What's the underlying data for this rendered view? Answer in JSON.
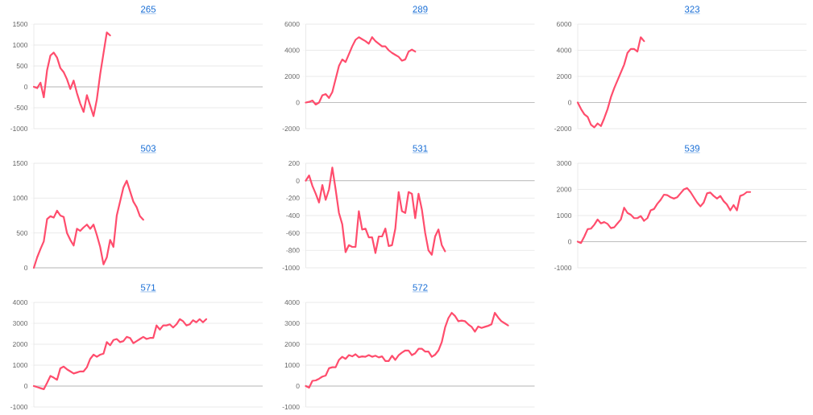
{
  "chart_data": [
    {
      "type": "line",
      "title": "265",
      "color": "#ff4d6d",
      "grid": "y",
      "tick_labels": "y",
      "ylim": [
        -1000,
        1500
      ],
      "yticks": [
        -1000,
        -500,
        0,
        500,
        1000,
        1500
      ],
      "categories": [
        null,
        null,
        null,
        null,
        null,
        null,
        null,
        null,
        null,
        null,
        null,
        null,
        null,
        null,
        null,
        null,
        null,
        null,
        null,
        null,
        null,
        null,
        null,
        null,
        null,
        null,
        null,
        null,
        null,
        null,
        null,
        null,
        null,
        null,
        null,
        null,
        null,
        null,
        null,
        null,
        null,
        null,
        null,
        null,
        null,
        null,
        null,
        null,
        null,
        null,
        null,
        null,
        null,
        null,
        null,
        null,
        null,
        null,
        null,
        null,
        null,
        null,
        null,
        null,
        null,
        null,
        null,
        null,
        null,
        null
      ],
      "values": [
        0,
        -30,
        100,
        -250,
        400,
        750,
        820,
        700,
        450,
        350,
        180,
        -50,
        150,
        -150,
        -400,
        -600,
        -200,
        -450,
        -700,
        -300,
        300,
        800,
        1300,
        1230,
        null,
        null,
        null,
        null,
        null,
        null,
        null,
        null,
        null,
        null,
        null,
        null,
        null,
        null,
        null,
        null,
        null,
        null,
        null,
        null,
        null,
        null,
        null,
        null,
        null,
        null,
        null,
        null,
        null,
        null,
        null,
        null,
        null,
        null,
        null,
        null,
        null,
        null,
        null,
        null,
        null,
        null,
        null,
        null,
        null,
        null
      ]
    },
    {
      "type": "line",
      "title": "289",
      "color": "#ff4d6d",
      "grid": "y",
      "tick_labels": "y",
      "ylim": [
        -2000,
        6000
      ],
      "yticks": [
        -2000,
        0,
        2000,
        4000,
        6000
      ],
      "categories": [
        null,
        null,
        null,
        null,
        null,
        null,
        null,
        null,
        null,
        null,
        null,
        null,
        null,
        null,
        null,
        null,
        null,
        null,
        null,
        null,
        null,
        null,
        null,
        null,
        null,
        null,
        null,
        null,
        null,
        null,
        null,
        null,
        null,
        null,
        null,
        null,
        null,
        null,
        null,
        null,
        null,
        null,
        null,
        null,
        null,
        null,
        null,
        null,
        null,
        null,
        null,
        null,
        null,
        null,
        null,
        null,
        null,
        null,
        null,
        null,
        null,
        null,
        null,
        null,
        null,
        null,
        null,
        null,
        null,
        null
      ],
      "values": [
        0,
        50,
        150,
        -150,
        0,
        550,
        650,
        350,
        800,
        1800,
        2800,
        3300,
        3100,
        3700,
        4300,
        4800,
        5000,
        4850,
        4700,
        4500,
        5000,
        4700,
        4500,
        4300,
        4300,
        4000,
        3800,
        3650,
        3500,
        3200,
        3300,
        3900,
        4050,
        3900,
        null,
        null,
        null,
        null,
        null,
        null,
        null,
        null,
        null,
        null,
        null,
        null,
        null,
        null,
        null,
        null,
        null,
        null,
        null,
        null,
        null,
        null,
        null,
        null,
        null,
        null,
        null,
        null,
        null,
        null,
        null,
        null,
        null,
        null,
        null,
        null
      ]
    },
    {
      "type": "line",
      "title": "323",
      "color": "#ff4d6d",
      "grid": "y",
      "tick_labels": "y",
      "ylim": [
        -2000,
        6000
      ],
      "yticks": [
        -2000,
        0,
        2000,
        4000,
        6000
      ],
      "categories": [
        null,
        null,
        null,
        null,
        null,
        null,
        null,
        null,
        null,
        null,
        null,
        null,
        null,
        null,
        null,
        null,
        null,
        null,
        null,
        null,
        null,
        null,
        null,
        null,
        null,
        null,
        null,
        null,
        null,
        null,
        null,
        null,
        null,
        null,
        null,
        null,
        null,
        null,
        null,
        null,
        null,
        null,
        null,
        null,
        null,
        null,
        null,
        null,
        null,
        null,
        null,
        null,
        null,
        null,
        null,
        null,
        null,
        null,
        null,
        null,
        null,
        null,
        null,
        null,
        null,
        null,
        null,
        null,
        null,
        null
      ],
      "values": [
        0,
        -500,
        -900,
        -1100,
        -1700,
        -1900,
        -1600,
        -1800,
        -1200,
        -500,
        400,
        1100,
        1700,
        2300,
        2900,
        3800,
        4100,
        4100,
        3900,
        5000,
        4700,
        null,
        null,
        null,
        null,
        null,
        null,
        null,
        null,
        null,
        null,
        null,
        null,
        null,
        null,
        null,
        null,
        null,
        null,
        null,
        null,
        null,
        null,
        null,
        null,
        null,
        null,
        null,
        null,
        null,
        null,
        null,
        null,
        null,
        null,
        null,
        null,
        null,
        null,
        null,
        null,
        null,
        null,
        null,
        null,
        null,
        null,
        null,
        null,
        null
      ]
    },
    {
      "type": "line",
      "title": "503",
      "color": "#ff4d6d",
      "grid": "y",
      "tick_labels": "y",
      "ylim": [
        0,
        1500
      ],
      "yticks": [
        0,
        500,
        1000,
        1500
      ],
      "categories": [
        null,
        null,
        null,
        null,
        null,
        null,
        null,
        null,
        null,
        null,
        null,
        null,
        null,
        null,
        null,
        null,
        null,
        null,
        null,
        null,
        null,
        null,
        null,
        null,
        null,
        null,
        null,
        null,
        null,
        null,
        null,
        null,
        null,
        null,
        null,
        null,
        null,
        null,
        null,
        null,
        null,
        null,
        null,
        null,
        null,
        null,
        null,
        null,
        null,
        null,
        null,
        null,
        null,
        null,
        null,
        null,
        null,
        null,
        null,
        null,
        null,
        null,
        null,
        null,
        null,
        null,
        null,
        null,
        null,
        null
      ],
      "values": [
        0,
        150,
        270,
        380,
        700,
        740,
        720,
        820,
        750,
        730,
        500,
        400,
        320,
        560,
        530,
        580,
        620,
        560,
        620,
        470,
        300,
        50,
        150,
        400,
        300,
        750,
        950,
        1150,
        1250,
        1100,
        950,
        870,
        740,
        690,
        null,
        null,
        null,
        null,
        null,
        null,
        null,
        null,
        null,
        null,
        null,
        null,
        null,
        null,
        null,
        null,
        null,
        null,
        null,
        null,
        null,
        null,
        null,
        null,
        null,
        null,
        null,
        null,
        null,
        null,
        null,
        null,
        null,
        null,
        null,
        null
      ]
    },
    {
      "type": "line",
      "title": "531",
      "color": "#ff4d6d",
      "grid": "y",
      "tick_labels": "y",
      "ylim": [
        -1000,
        200
      ],
      "yticks": [
        -1000,
        -800,
        -600,
        -400,
        -200,
        0,
        200
      ],
      "categories": [
        null,
        null,
        null,
        null,
        null,
        null,
        null,
        null,
        null,
        null,
        null,
        null,
        null,
        null,
        null,
        null,
        null,
        null,
        null,
        null,
        null,
        null,
        null,
        null,
        null,
        null,
        null,
        null,
        null,
        null,
        null,
        null,
        null,
        null,
        null,
        null,
        null,
        null,
        null,
        null,
        null,
        null,
        null,
        null,
        null,
        null,
        null,
        null,
        null,
        null,
        null,
        null,
        null,
        null,
        null,
        null,
        null,
        null,
        null,
        null,
        null,
        null,
        null,
        null,
        null,
        null,
        null,
        null,
        null,
        null
      ],
      "values": [
        0,
        60,
        -60,
        -150,
        -250,
        -50,
        -220,
        -100,
        150,
        -100,
        -370,
        -500,
        -820,
        -740,
        -760,
        -760,
        -350,
        -560,
        -550,
        -650,
        -650,
        -830,
        -640,
        -640,
        -550,
        -750,
        -740,
        -550,
        -130,
        -350,
        -370,
        -130,
        -150,
        -430,
        -150,
        -330,
        -600,
        -800,
        -850,
        -640,
        -560,
        -740,
        -810,
        null,
        null,
        null,
        null,
        null,
        null,
        null,
        null,
        null,
        null,
        null,
        null,
        null,
        null,
        null,
        null,
        null,
        null,
        null,
        null,
        null,
        null,
        null,
        null,
        null,
        null,
        null
      ]
    },
    {
      "type": "line",
      "title": "539",
      "color": "#ff4d6d",
      "grid": "y",
      "tick_labels": "y",
      "ylim": [
        -1000,
        3000
      ],
      "yticks": [
        -1000,
        0,
        1000,
        2000,
        3000
      ],
      "categories": [
        null,
        null,
        null,
        null,
        null,
        null,
        null,
        null,
        null,
        null,
        null,
        null,
        null,
        null,
        null,
        null,
        null,
        null,
        null,
        null,
        null,
        null,
        null,
        null,
        null,
        null,
        null,
        null,
        null,
        null,
        null,
        null,
        null,
        null,
        null,
        null,
        null,
        null,
        null,
        null,
        null,
        null,
        null,
        null,
        null,
        null,
        null,
        null,
        null,
        null,
        null,
        null,
        null,
        null,
        null,
        null,
        null,
        null,
        null,
        null,
        null,
        null,
        null,
        null,
        null,
        null,
        null,
        null,
        null,
        null
      ],
      "values": [
        0,
        -50,
        200,
        480,
        500,
        650,
        850,
        700,
        750,
        680,
        520,
        550,
        700,
        850,
        1300,
        1100,
        1030,
        900,
        900,
        980,
        800,
        900,
        1200,
        1250,
        1450,
        1600,
        1800,
        1780,
        1700,
        1650,
        1700,
        1850,
        2000,
        2050,
        1900,
        1700,
        1500,
        1350,
        1500,
        1850,
        1880,
        1750,
        1650,
        1750,
        1550,
        1420,
        1200,
        1400,
        1200,
        1750,
        1800,
        1900,
        1900,
        null,
        null,
        null,
        null,
        null,
        null,
        null,
        null,
        null,
        null,
        null,
        null,
        null,
        null,
        null,
        null,
        null
      ]
    },
    {
      "type": "line",
      "title": "571",
      "color": "#ff4d6d",
      "grid": "y",
      "tick_labels": "y",
      "ylim": [
        -1000,
        4000
      ],
      "yticks": [
        -1000,
        0,
        1000,
        2000,
        3000,
        4000
      ],
      "categories": [
        null,
        null,
        null,
        null,
        null,
        null,
        null,
        null,
        null,
        null,
        null,
        null,
        null,
        null,
        null,
        null,
        null,
        null,
        null,
        null,
        null,
        null,
        null,
        null,
        null,
        null,
        null,
        null,
        null,
        null,
        null,
        null,
        null,
        null,
        null,
        null,
        null,
        null,
        null,
        null,
        null,
        null,
        null,
        null,
        null,
        null,
        null,
        null,
        null,
        null,
        null,
        null,
        null,
        null,
        null,
        null,
        null,
        null,
        null,
        null,
        null,
        null,
        null,
        null,
        null,
        null,
        null,
        null,
        null,
        null
      ],
      "values": [
        0,
        -50,
        -100,
        -150,
        150,
        480,
        400,
        300,
        850,
        930,
        800,
        700,
        600,
        650,
        700,
        700,
        900,
        1300,
        1500,
        1400,
        1500,
        1550,
        2100,
        1950,
        2200,
        2250,
        2100,
        2150,
        2350,
        2300,
        2050,
        2150,
        2250,
        2350,
        2250,
        2300,
        2300,
        2900,
        2700,
        2900,
        2900,
        2950,
        2800,
        2950,
        3200,
        3100,
        2900,
        2950,
        3150,
        3050,
        3200,
        3050,
        3200,
        null,
        null,
        null,
        null,
        null,
        null,
        null,
        null,
        null,
        null,
        null,
        null,
        null,
        null,
        null,
        null,
        null
      ]
    },
    {
      "type": "line",
      "title": "572",
      "color": "#ff4d6d",
      "grid": "y",
      "tick_labels": "y",
      "ylim": [
        -1000,
        4000
      ],
      "yticks": [
        -1000,
        0,
        1000,
        2000,
        3000,
        4000
      ],
      "categories": [
        null,
        null,
        null,
        null,
        null,
        null,
        null,
        null,
        null,
        null,
        null,
        null,
        null,
        null,
        null,
        null,
        null,
        null,
        null,
        null,
        null,
        null,
        null,
        null,
        null,
        null,
        null,
        null,
        null,
        null,
        null,
        null,
        null,
        null,
        null,
        null,
        null,
        null,
        null,
        null,
        null,
        null,
        null,
        null,
        null,
        null,
        null,
        null,
        null,
        null,
        null,
        null,
        null,
        null,
        null,
        null,
        null,
        null,
        null,
        null,
        null,
        null,
        null,
        null,
        null,
        null,
        null,
        null,
        null,
        null
      ],
      "values": [
        0,
        -80,
        250,
        270,
        350,
        450,
        500,
        850,
        900,
        900,
        1250,
        1400,
        1300,
        1480,
        1420,
        1520,
        1380,
        1420,
        1400,
        1480,
        1400,
        1450,
        1370,
        1420,
        1200,
        1200,
        1450,
        1250,
        1480,
        1600,
        1700,
        1700,
        1480,
        1570,
        1780,
        1780,
        1650,
        1650,
        1400,
        1500,
        1700,
        2100,
        2800,
        3250,
        3500,
        3350,
        3100,
        3130,
        3100,
        2950,
        2830,
        2600,
        2850,
        2780,
        2830,
        2880,
        2950,
        3500,
        3280,
        3100,
        3000,
        2900,
        null,
        null,
        null,
        null,
        null,
        null,
        null,
        null
      ]
    }
  ]
}
